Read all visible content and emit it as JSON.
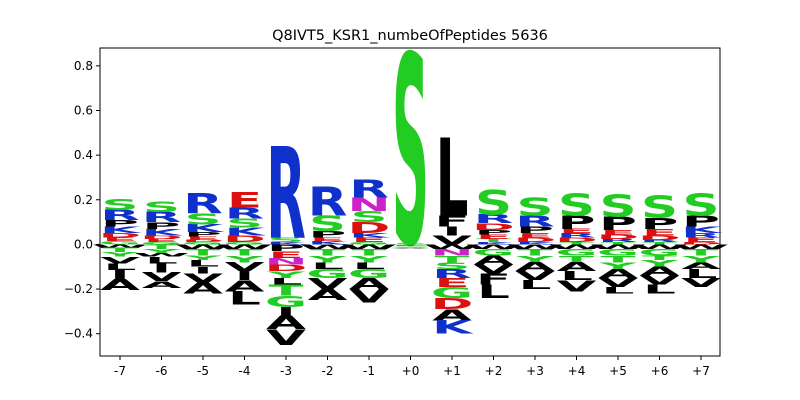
{
  "chart_data": {
    "type": "sequence-logo",
    "title": "Q8IVT5_KSR1_numbeOfPeptides 5636",
    "xlabel": "",
    "ylabel": "",
    "ylim": [
      -0.5,
      0.88
    ],
    "yticks": [
      -0.4,
      -0.2,
      0.0,
      0.2,
      0.4,
      0.6,
      0.8
    ],
    "ytick_labels": [
      "−0.4",
      "−0.2",
      "0.0",
      "0.2",
      "0.4",
      "0.6",
      "0.8"
    ],
    "positions": [
      "-7",
      "-6",
      "-5",
      "-4",
      "-3",
      "-2",
      "-1",
      "+0",
      "+1",
      "+2",
      "+3",
      "+4",
      "+5",
      "+6",
      "+7"
    ],
    "colors": {
      "S": "#22cc22",
      "T": "#22cc22",
      "G": "#22cc22",
      "Y": "#22cc22",
      "C": "#22cc22",
      "R": "#1030cc",
      "K": "#1030cc",
      "H": "#1030cc",
      "D": "#dd1010",
      "E": "#dd1010",
      "N": "#cc22cc",
      "Q": "#cc22cc",
      "P": "#000000",
      "A": "#000000",
      "V": "#000000",
      "L": "#000000",
      "I": "#000000",
      "M": "#000000",
      "F": "#000000",
      "W": "#000000"
    },
    "columns": [
      {
        "pos": [
          [
            "S",
            0.05
          ],
          [
            "R",
            0.045
          ],
          [
            "P",
            0.03
          ],
          [
            "K",
            0.03
          ],
          [
            "D",
            0.02
          ],
          [
            "E",
            0.015
          ],
          [
            "G",
            0.015
          ]
        ],
        "neg": [
          [
            "W",
            0.015
          ],
          [
            "T",
            0.02
          ],
          [
            "Y",
            0.02
          ],
          [
            "V",
            0.03
          ],
          [
            "L",
            0.03
          ],
          [
            "I",
            0.04
          ],
          [
            "A",
            0.05
          ]
        ]
      },
      {
        "pos": [
          [
            "S",
            0.045
          ],
          [
            "R",
            0.045
          ],
          [
            "P",
            0.03
          ],
          [
            "K",
            0.03
          ],
          [
            "D",
            0.015
          ],
          [
            "E",
            0.015
          ],
          [
            "G",
            0.01
          ]
        ],
        "neg": [
          [
            "T",
            0.02
          ],
          [
            "Y",
            0.02
          ],
          [
            "W",
            0.015
          ],
          [
            "L",
            0.03
          ],
          [
            "I",
            0.04
          ],
          [
            "V",
            0.04
          ],
          [
            "A",
            0.03
          ]
        ]
      },
      {
        "pos": [
          [
            "R",
            0.09
          ],
          [
            "S",
            0.05
          ],
          [
            "K",
            0.035
          ],
          [
            "P",
            0.02
          ],
          [
            "E",
            0.015
          ],
          [
            "D",
            0.01
          ],
          [
            "G",
            0.01
          ]
        ],
        "neg": [
          [
            "W",
            0.02
          ],
          [
            "T",
            0.03
          ],
          [
            "Y",
            0.02
          ],
          [
            "L",
            0.03
          ],
          [
            "I",
            0.03
          ],
          [
            "V",
            0.04
          ],
          [
            "A",
            0.05
          ]
        ]
      },
      {
        "pos": [
          [
            "E",
            0.07
          ],
          [
            "R",
            0.05
          ],
          [
            "S",
            0.04
          ],
          [
            "K",
            0.035
          ],
          [
            "D",
            0.03
          ],
          [
            "G",
            0.01
          ]
        ],
        "neg": [
          [
            "W",
            0.02
          ],
          [
            "T",
            0.03
          ],
          [
            "Y",
            0.03
          ],
          [
            "V",
            0.04
          ],
          [
            "I",
            0.04
          ],
          [
            "A",
            0.05
          ],
          [
            "L",
            0.06
          ]
        ]
      },
      {
        "pos": [
          [
            "R",
            0.41
          ],
          [
            "S",
            0.02
          ],
          [
            "K",
            0.01
          ]
        ],
        "neg": [
          [
            "P",
            0.03
          ],
          [
            "E",
            0.03
          ],
          [
            "N",
            0.03
          ],
          [
            "D",
            0.03
          ],
          [
            "Y",
            0.03
          ],
          [
            "L",
            0.03
          ],
          [
            "T",
            0.05
          ],
          [
            "G",
            0.05
          ],
          [
            "I",
            0.04
          ],
          [
            "A",
            0.06
          ],
          [
            "V",
            0.07
          ]
        ]
      },
      {
        "pos": [
          [
            "R",
            0.13
          ],
          [
            "S",
            0.07
          ],
          [
            "P",
            0.03
          ],
          [
            "E",
            0.015
          ],
          [
            "K",
            0.015
          ]
        ],
        "neg": [
          [
            "W",
            0.02
          ],
          [
            "T",
            0.03
          ],
          [
            "Y",
            0.03
          ],
          [
            "L",
            0.03
          ],
          [
            "G",
            0.04
          ],
          [
            "V",
            0.05
          ],
          [
            "A",
            0.05
          ]
        ]
      },
      {
        "pos": [
          [
            "R",
            0.08
          ],
          [
            "N",
            0.06
          ],
          [
            "S",
            0.05
          ],
          [
            "D",
            0.05
          ],
          [
            "K",
            0.02
          ],
          [
            "E",
            0.02
          ],
          [
            "G",
            0.01
          ]
        ],
        "neg": [
          [
            "W",
            0.02
          ],
          [
            "T",
            0.03
          ],
          [
            "Y",
            0.03
          ],
          [
            "L",
            0.03
          ],
          [
            "G",
            0.04
          ],
          [
            "A",
            0.05
          ],
          [
            "V",
            0.06
          ]
        ]
      },
      {
        "pos": [
          [
            "S",
            0.85
          ],
          [
            "E",
            0.004
          ],
          [
            "T",
            0.003
          ]
        ],
        "neg": [
          [
            "C",
            0.003
          ],
          [
            "P",
            0.003
          ],
          [
            "G",
            0.004
          ],
          [
            "A",
            0.004
          ],
          [
            "V",
            0.004
          ]
        ]
      },
      {
        "pos": [
          [
            "L",
            0.35
          ],
          [
            "F",
            0.05
          ],
          [
            "I",
            0.04
          ],
          [
            "V",
            0.04
          ]
        ],
        "neg": [
          [
            "W",
            0.02
          ],
          [
            "N",
            0.03
          ],
          [
            "T",
            0.03
          ],
          [
            "S",
            0.03
          ],
          [
            "R",
            0.04
          ],
          [
            "E",
            0.04
          ],
          [
            "G",
            0.05
          ],
          [
            "D",
            0.05
          ],
          [
            "A",
            0.05
          ],
          [
            "K",
            0.06
          ]
        ]
      },
      {
        "pos": [
          [
            "S",
            0.11
          ],
          [
            "R",
            0.04
          ],
          [
            "D",
            0.03
          ],
          [
            "P",
            0.02
          ],
          [
            "E",
            0.02
          ],
          [
            "T",
            0.015
          ],
          [
            "K",
            0.01
          ]
        ],
        "neg": [
          [
            "W",
            0.02
          ],
          [
            "G",
            0.03
          ],
          [
            "A",
            0.04
          ],
          [
            "V",
            0.04
          ],
          [
            "F",
            0.05
          ],
          [
            "L",
            0.06
          ]
        ]
      },
      {
        "pos": [
          [
            "S",
            0.08
          ],
          [
            "R",
            0.05
          ],
          [
            "P",
            0.03
          ],
          [
            "E",
            0.02
          ],
          [
            "D",
            0.02
          ],
          [
            "K",
            0.01
          ]
        ],
        "neg": [
          [
            "W",
            0.02
          ],
          [
            "T",
            0.03
          ],
          [
            "Y",
            0.03
          ],
          [
            "A",
            0.04
          ],
          [
            "V",
            0.04
          ],
          [
            "L",
            0.04
          ]
        ]
      },
      {
        "pos": [
          [
            "S",
            0.1
          ],
          [
            "P",
            0.06
          ],
          [
            "E",
            0.02
          ],
          [
            "R",
            0.02
          ],
          [
            "D",
            0.02
          ],
          [
            "T",
            0.01
          ]
        ],
        "neg": [
          [
            "W",
            0.02
          ],
          [
            "G",
            0.03
          ],
          [
            "T",
            0.03
          ],
          [
            "A",
            0.04
          ],
          [
            "L",
            0.04
          ],
          [
            "V",
            0.05
          ]
        ]
      },
      {
        "pos": [
          [
            "S",
            0.1
          ],
          [
            "P",
            0.06
          ],
          [
            "E",
            0.02
          ],
          [
            "D",
            0.02
          ],
          [
            "R",
            0.015
          ],
          [
            "T",
            0.01
          ]
        ],
        "neg": [
          [
            "W",
            0.02
          ],
          [
            "G",
            0.03
          ],
          [
            "T",
            0.03
          ],
          [
            "Y",
            0.03
          ],
          [
            "A",
            0.04
          ],
          [
            "V",
            0.04
          ],
          [
            "L",
            0.03
          ]
        ]
      },
      {
        "pos": [
          [
            "S",
            0.1
          ],
          [
            "P",
            0.05
          ],
          [
            "E",
            0.03
          ],
          [
            "D",
            0.02
          ],
          [
            "R",
            0.01
          ],
          [
            "T",
            0.01
          ]
        ],
        "neg": [
          [
            "W",
            0.02
          ],
          [
            "G",
            0.03
          ],
          [
            "T",
            0.02
          ],
          [
            "Y",
            0.03
          ],
          [
            "A",
            0.04
          ],
          [
            "V",
            0.04
          ],
          [
            "L",
            0.04
          ]
        ]
      },
      {
        "pos": [
          [
            "S",
            0.1
          ],
          [
            "P",
            0.05
          ],
          [
            "K",
            0.03
          ],
          [
            "R",
            0.02
          ],
          [
            "E",
            0.02
          ],
          [
            "D",
            0.01
          ]
        ],
        "neg": [
          [
            "W",
            0.02
          ],
          [
            "T",
            0.03
          ],
          [
            "Y",
            0.03
          ],
          [
            "A",
            0.03
          ],
          [
            "L",
            0.04
          ],
          [
            "V",
            0.04
          ]
        ]
      }
    ]
  }
}
